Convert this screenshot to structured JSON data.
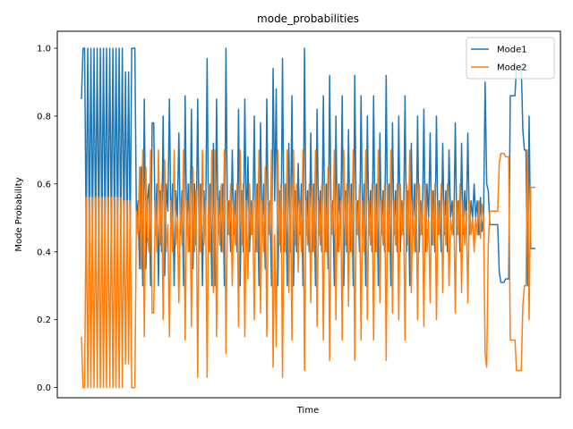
{
  "chart_data": {
    "type": "line",
    "title": "mode_probabilities",
    "xlabel": "Time",
    "ylabel": "Mode Probability",
    "ylim": [
      -0.03,
      1.05
    ],
    "yticks": [
      "0.0",
      "0.2",
      "0.4",
      "0.6",
      "0.8",
      "1.0"
    ],
    "ytick_values": [
      0.0,
      0.2,
      0.4,
      0.6,
      0.8,
      1.0
    ],
    "xticks_shown": false,
    "grid": false,
    "legend_position": "top-right",
    "n_points": 280,
    "series": [
      {
        "name": "Mode1",
        "color": "#1f77b4",
        "values": [
          0.85,
          1.0,
          1.0,
          0.44,
          1.0,
          0.44,
          1.0,
          0.44,
          1.0,
          0.44,
          1.0,
          0.44,
          1.0,
          0.44,
          1.0,
          0.44,
          1.0,
          0.44,
          1.0,
          0.44,
          1.0,
          0.44,
          1.0,
          0.44,
          1.0,
          0.44,
          1.0,
          0.45,
          0.93,
          0.45,
          0.93,
          0.45,
          1.0,
          1.0,
          1.0,
          0.48,
          0.55,
          0.35,
          0.65,
          0.3,
          0.85,
          0.35,
          0.55,
          0.6,
          0.3,
          0.78,
          0.78,
          0.45,
          0.6,
          0.3,
          0.58,
          0.4,
          0.8,
          0.33,
          0.6,
          0.52,
          0.85,
          0.45,
          0.6,
          0.3,
          0.58,
          0.5,
          0.75,
          0.45,
          0.58,
          0.3,
          0.86,
          0.45,
          0.6,
          0.4,
          0.82,
          0.35,
          0.6,
          0.42,
          0.85,
          0.4,
          0.6,
          0.3,
          0.58,
          0.45,
          0.97,
          0.4,
          0.6,
          0.3,
          0.72,
          0.3,
          0.85,
          0.45,
          0.58,
          0.4,
          0.6,
          0.3,
          1.0,
          0.45,
          0.55,
          0.4,
          0.7,
          0.45,
          0.58,
          0.4,
          0.82,
          0.3,
          0.58,
          0.4,
          0.85,
          0.45,
          0.68,
          0.4,
          0.55,
          0.45,
          0.8,
          0.4,
          0.6,
          0.3,
          0.78,
          0.45,
          0.6,
          0.35,
          0.85,
          0.45,
          0.55,
          0.3,
          0.94,
          0.55,
          0.88,
          0.3,
          0.58,
          0.4,
          0.97,
          0.4,
          0.6,
          0.3,
          0.72,
          0.4,
          0.86,
          0.3,
          0.58,
          0.4,
          0.66,
          0.45,
          0.6,
          0.3,
          1.0,
          0.45,
          0.58,
          0.4,
          0.75,
          0.4,
          0.6,
          0.3,
          0.82,
          0.45,
          0.58,
          0.4,
          0.86,
          0.4,
          0.6,
          0.35,
          0.92,
          0.45,
          0.55,
          0.3,
          0.8,
          0.4,
          0.6,
          0.45,
          0.86,
          0.3,
          0.58,
          0.4,
          0.76,
          0.4,
          0.6,
          0.3,
          0.92,
          0.45,
          0.55,
          0.4,
          0.86,
          0.45,
          0.6,
          0.3,
          0.8,
          0.45,
          0.58,
          0.4,
          0.86,
          0.4,
          0.6,
          0.3,
          0.75,
          0.45,
          0.58,
          0.4,
          0.92,
          0.4,
          0.6,
          0.3,
          0.78,
          0.45,
          0.58,
          0.4,
          0.8,
          0.4,
          0.55,
          0.45,
          0.86,
          0.4,
          0.58,
          0.3,
          0.72,
          0.45,
          0.6,
          0.4,
          0.8,
          0.4,
          0.55,
          0.45,
          0.82,
          0.4,
          0.6,
          0.5,
          0.75,
          0.42,
          0.58,
          0.4,
          0.8,
          0.45,
          0.55,
          0.4,
          0.72,
          0.45,
          0.58,
          0.4,
          0.7,
          0.5,
          0.55,
          0.45,
          0.78,
          0.45,
          0.55,
          0.4,
          0.72,
          0.45,
          0.58,
          0.48,
          0.75,
          0.45,
          0.55,
          0.5,
          0.6,
          0.5,
          0.55,
          0.45,
          0.56,
          0.46,
          0.5,
          0.9,
          0.6,
          0.58,
          0.48,
          0.48,
          0.48,
          0.48,
          0.48,
          0.48,
          0.34,
          0.31,
          0.31,
          0.31,
          0.32,
          0.32,
          0.32,
          0.86,
          0.86,
          0.86,
          0.86,
          0.95,
          0.95,
          0.95,
          0.95,
          0.76,
          0.7,
          0.7,
          0.3,
          0.8,
          0.41,
          0.41,
          0.41,
          0.41
        ]
      },
      {
        "name": "Mode2",
        "color": "#ff7f0e",
        "values": [
          0.15,
          0.0,
          0.0,
          0.56,
          0.0,
          0.56,
          0.0,
          0.56,
          0.0,
          0.56,
          0.0,
          0.56,
          0.0,
          0.56,
          0.0,
          0.56,
          0.0,
          0.56,
          0.0,
          0.56,
          0.0,
          0.56,
          0.0,
          0.56,
          0.0,
          0.56,
          0.0,
          0.55,
          0.07,
          0.55,
          0.07,
          0.55,
          0.0,
          0.0,
          0.0,
          0.52,
          0.45,
          0.65,
          0.35,
          0.7,
          0.15,
          0.65,
          0.45,
          0.4,
          0.7,
          0.22,
          0.22,
          0.55,
          0.4,
          0.7,
          0.42,
          0.6,
          0.2,
          0.67,
          0.4,
          0.48,
          0.15,
          0.55,
          0.4,
          0.7,
          0.42,
          0.5,
          0.25,
          0.55,
          0.42,
          0.7,
          0.14,
          0.55,
          0.4,
          0.6,
          0.18,
          0.65,
          0.4,
          0.58,
          0.03,
          0.6,
          0.4,
          0.7,
          0.42,
          0.55,
          0.03,
          0.6,
          0.4,
          0.7,
          0.28,
          0.7,
          0.15,
          0.55,
          0.42,
          0.6,
          0.4,
          0.7,
          0.1,
          0.55,
          0.45,
          0.6,
          0.3,
          0.55,
          0.42,
          0.6,
          0.18,
          0.7,
          0.42,
          0.6,
          0.15,
          0.55,
          0.32,
          0.6,
          0.45,
          0.55,
          0.2,
          0.6,
          0.4,
          0.7,
          0.22,
          0.55,
          0.4,
          0.65,
          0.15,
          0.55,
          0.45,
          0.7,
          0.06,
          0.45,
          0.12,
          0.7,
          0.42,
          0.6,
          0.03,
          0.6,
          0.4,
          0.7,
          0.28,
          0.6,
          0.14,
          0.7,
          0.42,
          0.6,
          0.34,
          0.55,
          0.4,
          0.7,
          0.05,
          0.55,
          0.42,
          0.6,
          0.25,
          0.6,
          0.4,
          0.7,
          0.18,
          0.55,
          0.42,
          0.6,
          0.14,
          0.6,
          0.4,
          0.65,
          0.08,
          0.55,
          0.45,
          0.7,
          0.2,
          0.6,
          0.4,
          0.55,
          0.14,
          0.7,
          0.42,
          0.6,
          0.24,
          0.6,
          0.4,
          0.7,
          0.08,
          0.55,
          0.45,
          0.6,
          0.14,
          0.55,
          0.4,
          0.7,
          0.2,
          0.55,
          0.42,
          0.6,
          0.14,
          0.6,
          0.4,
          0.7,
          0.25,
          0.55,
          0.42,
          0.6,
          0.08,
          0.6,
          0.4,
          0.7,
          0.22,
          0.55,
          0.42,
          0.6,
          0.2,
          0.6,
          0.45,
          0.55,
          0.14,
          0.6,
          0.42,
          0.7,
          0.28,
          0.55,
          0.4,
          0.6,
          0.2,
          0.6,
          0.45,
          0.55,
          0.18,
          0.6,
          0.4,
          0.5,
          0.25,
          0.58,
          0.42,
          0.6,
          0.2,
          0.55,
          0.45,
          0.6,
          0.28,
          0.55,
          0.42,
          0.6,
          0.3,
          0.5,
          0.45,
          0.55,
          0.22,
          0.55,
          0.45,
          0.6,
          0.28,
          0.55,
          0.42,
          0.52,
          0.25,
          0.55,
          0.45,
          0.5,
          0.4,
          0.5,
          0.45,
          0.55,
          0.44,
          0.54,
          0.5,
          0.1,
          0.06,
          0.42,
          0.52,
          0.52,
          0.52,
          0.52,
          0.52,
          0.52,
          0.66,
          0.69,
          0.69,
          0.69,
          0.68,
          0.68,
          0.68,
          0.14,
          0.14,
          0.14,
          0.14,
          0.05,
          0.05,
          0.05,
          0.05,
          0.24,
          0.3,
          0.3,
          0.7,
          0.2,
          0.59,
          0.59,
          0.59,
          0.59
        ]
      }
    ]
  }
}
